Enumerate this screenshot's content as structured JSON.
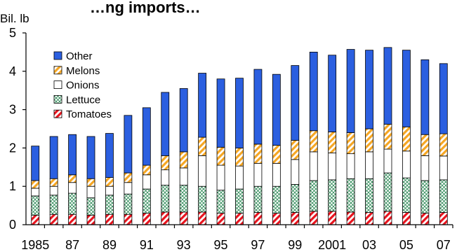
{
  "chart_data": {
    "type": "bar",
    "stacked": true,
    "title": "…ng imports…",
    "ylabel": "Bil. lb",
    "xlabel": "",
    "ylim": [
      0,
      5
    ],
    "yticks": [
      "0",
      "1",
      "2",
      "3",
      "4",
      "5"
    ],
    "categories": [
      "1985",
      "1986",
      "1987",
      "1988",
      "1989",
      "1990",
      "1991",
      "1992",
      "1993",
      "1994",
      "1995",
      "1996",
      "1997",
      "1998",
      "1999",
      "2000",
      "2001",
      "2002",
      "2003",
      "2004",
      "2005",
      "2006",
      "2007"
    ],
    "xtick_labels": [
      "1985",
      "",
      "87",
      "",
      "89",
      "",
      "91",
      "",
      "93",
      "",
      "95",
      "",
      "97",
      "",
      "99",
      "",
      "2001",
      "",
      "03",
      "",
      "05",
      "",
      "07"
    ],
    "legend_position": "top-left",
    "series": [
      {
        "name": "Tomatoes",
        "color": "#e8141e",
        "pattern": "diagonal-stripes",
        "values": [
          0.25,
          0.27,
          0.27,
          0.25,
          0.27,
          0.27,
          0.3,
          0.33,
          0.33,
          0.33,
          0.3,
          0.3,
          0.32,
          0.3,
          0.32,
          0.35,
          0.35,
          0.33,
          0.32,
          0.35,
          0.32,
          0.3,
          0.32
        ]
      },
      {
        "name": "Lettuce",
        "color": "#2e8b57",
        "pattern": "crosshatch",
        "values": [
          0.5,
          0.5,
          0.55,
          0.45,
          0.5,
          0.53,
          0.63,
          0.7,
          0.7,
          0.67,
          0.6,
          0.63,
          0.68,
          0.7,
          0.73,
          0.8,
          0.82,
          0.87,
          0.88,
          1.0,
          0.9,
          0.85,
          0.85
        ]
      },
      {
        "name": "Onions",
        "color": "#ffffff",
        "pattern": "none",
        "values": [
          0.2,
          0.23,
          0.28,
          0.3,
          0.23,
          0.3,
          0.37,
          0.4,
          0.45,
          0.8,
          0.65,
          0.6,
          0.6,
          0.6,
          0.65,
          0.75,
          0.7,
          0.65,
          0.7,
          0.62,
          0.7,
          0.65,
          0.62
        ]
      },
      {
        "name": "Melons",
        "color": "#f5a623",
        "pattern": "diagonal-stripes",
        "values": [
          0.2,
          0.2,
          0.2,
          0.2,
          0.23,
          0.25,
          0.25,
          0.37,
          0.42,
          0.48,
          0.47,
          0.47,
          0.5,
          0.47,
          0.5,
          0.55,
          0.55,
          0.55,
          0.6,
          0.65,
          0.63,
          0.55,
          0.58
        ]
      },
      {
        "name": "Other",
        "color": "#2b5fe0",
        "pattern": "none",
        "values": [
          0.9,
          1.1,
          1.05,
          1.1,
          1.15,
          1.5,
          1.5,
          1.65,
          1.65,
          1.67,
          1.78,
          1.82,
          1.95,
          1.85,
          1.95,
          2.05,
          2.0,
          2.17,
          2.05,
          2.0,
          2.0,
          1.95,
          1.83
        ]
      }
    ],
    "legend_order": [
      "Other",
      "Melons",
      "Onions",
      "Lettuce",
      "Tomatoes"
    ],
    "grid": false
  }
}
